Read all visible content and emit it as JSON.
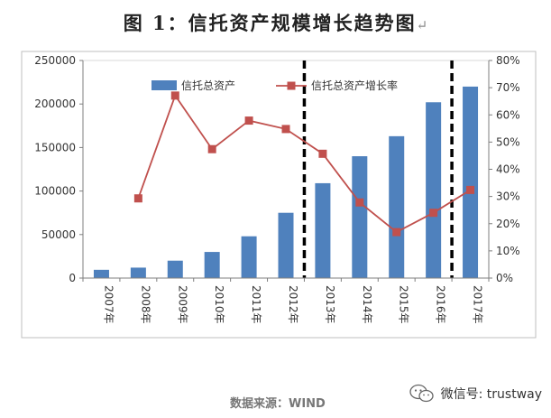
{
  "page": {
    "title": "图 1：信托资产规模增长趋势图",
    "title_mark": "↵",
    "source": "数据来源：WIND",
    "watermark": "微信号: trustway",
    "watermark_icon": "wechat-icon"
  },
  "chart_data": {
    "type": "bar",
    "categories": [
      "2007年",
      "2008年",
      "2009年",
      "2010年",
      "2011年",
      "2012年",
      "2013年",
      "2014年",
      "2015年",
      "2016年",
      "2017年"
    ],
    "series": [
      {
        "name": "信托总资产",
        "type": "bar",
        "axis": "left",
        "color": "#4f81bd",
        "values": [
          9500,
          12000,
          20000,
          30000,
          48000,
          75000,
          109000,
          140000,
          163000,
          202000,
          220000
        ]
      },
      {
        "name": "信托总资产增长率",
        "type": "line",
        "axis": "right",
        "color": "#c0504d",
        "values": [
          null,
          0.293,
          0.671,
          0.474,
          0.579,
          0.548,
          0.457,
          0.278,
          0.169,
          0.24,
          0.324
        ]
      }
    ],
    "left_axis": {
      "ylim": [
        0,
        250000
      ],
      "ticks": [
        0,
        50000,
        100000,
        150000,
        200000,
        250000
      ],
      "tick_labels": [
        "0",
        "50000",
        "100000",
        "150000",
        "200000",
        "250000"
      ]
    },
    "right_axis": {
      "ylim": [
        0,
        0.8
      ],
      "ticks": [
        0,
        0.1,
        0.2,
        0.3,
        0.4,
        0.5,
        0.6,
        0.7,
        0.8
      ],
      "tick_labels": [
        "0%",
        "10%",
        "20%",
        "30%",
        "40%",
        "50%",
        "60%",
        "70%",
        "80%"
      ]
    },
    "divider_after_categories": [
      "2012年",
      "2016年"
    ],
    "legend_placement": "top-center",
    "grid": false,
    "xlabel": "",
    "ylabel": ""
  }
}
